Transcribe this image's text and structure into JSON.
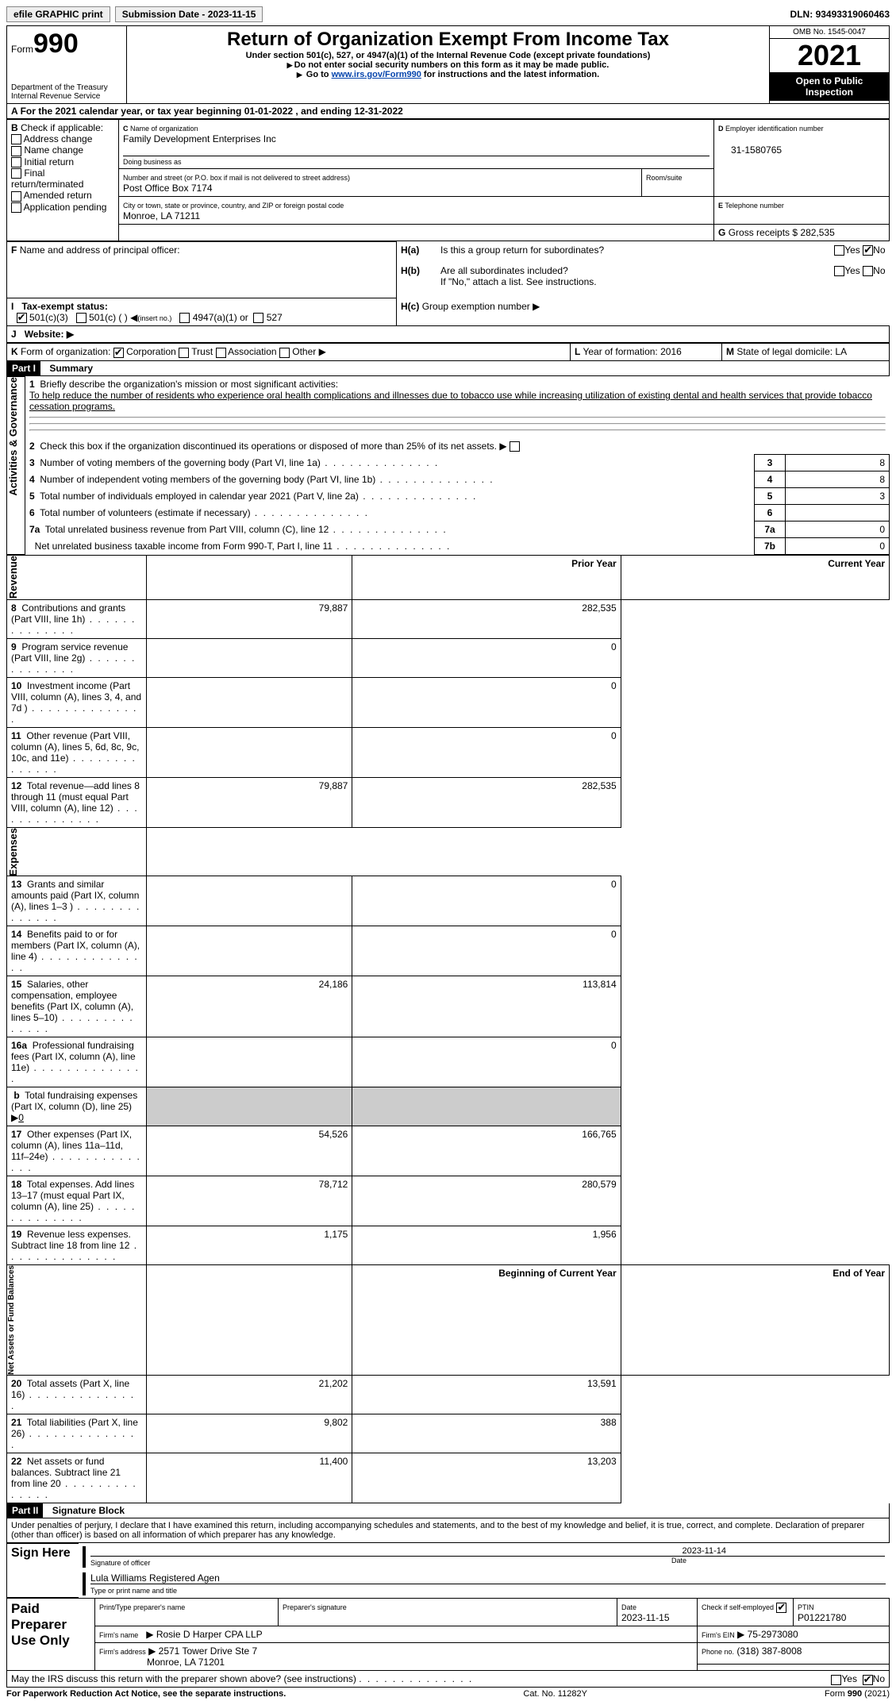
{
  "topbar": {
    "efile": "efile GRAPHIC print",
    "submission_label": "Submission Date - ",
    "submission_date": "2023-11-15",
    "dln_label": "DLN:",
    "dln": "93493319060463"
  },
  "header": {
    "form_word": "Form",
    "form_num": "990",
    "dept": "Department of the Treasury",
    "irs": "Internal Revenue Service",
    "title": "Return of Organization Exempt From Income Tax",
    "sub1": "Under section 501(c), 527, or 4947(a)(1) of the Internal Revenue Code (except private foundations)",
    "sub2": "Do not enter social security numbers on this form as it may be made public.",
    "sub3_a": "Go to ",
    "sub3_link": "www.irs.gov/Form990",
    "sub3_b": " for instructions and the latest information.",
    "omb": "OMB No. 1545-0047",
    "year": "2021",
    "open_pub": "Open to Public Inspection"
  },
  "lineA": {
    "text_a": "For the 2021 calendar year, or tax year beginning ",
    "begin": "01-01-2022",
    "text_b": " , and ending ",
    "end": "12-31-2022"
  },
  "boxB": {
    "label": "Check if applicable:",
    "opts": [
      "Address change",
      "Name change",
      "Initial return",
      "Final return/terminated",
      "Amended return",
      "Application pending"
    ]
  },
  "boxC": {
    "label": "Name of organization",
    "name": "Family Development Enterprises Inc",
    "dba_label": "Doing business as",
    "addr_label": "Number and street (or P.O. box if mail is not delivered to street address)",
    "addr": "Post Office Box 7174",
    "room_label": "Room/suite",
    "city_label": "City or town, state or province, country, and ZIP or foreign postal code",
    "city": "Monroe, LA   71211"
  },
  "boxD": {
    "label": "Employer identification number",
    "val": "31-1580765"
  },
  "boxE": {
    "label": "Telephone number"
  },
  "boxG": {
    "label": "Gross receipts $",
    "val": "282,535"
  },
  "boxF": {
    "label": "Name and address of principal officer:"
  },
  "boxH": {
    "a": "Is this a group return for subordinates?",
    "b": "Are all subordinates included?",
    "note": "If \"No,\" attach a list. See instructions.",
    "c": "Group exemption number"
  },
  "yesno": {
    "yes": "Yes",
    "no": "No"
  },
  "boxI": {
    "label": "Tax-exempt status:",
    "o1": "501(c)(3)",
    "o2": "501(c) (    )",
    "o2b": "(insert no.)",
    "o3": "4947(a)(1) or",
    "o4": "527"
  },
  "boxJ": {
    "label": "Website:"
  },
  "boxK": {
    "label": "Form of organization:",
    "o1": "Corporation",
    "o2": "Trust",
    "o3": "Association",
    "o4": "Other"
  },
  "boxL": {
    "label": "Year of formation:",
    "val": "2016"
  },
  "boxM": {
    "label": "State of legal domicile:",
    "val": "LA"
  },
  "part1": {
    "num": "Part I",
    "title": "Summary"
  },
  "sidebar": {
    "a": "Activities & Governance",
    "b": "Revenue",
    "c": "Expenses",
    "d": "Net Assets or Fund Balances"
  },
  "summary": {
    "l1_label": "Briefly describe the organization's mission or most significant activities:",
    "l1_text": "To help reduce the number of residents who experience oral health complications and illnesses due to tobacco use while increasing utilization of existing dental and health services that provide tobacco cessation programs.",
    "l2": "Check this box           if the organization discontinued its operations or disposed of more than 25% of its net assets.",
    "rows": [
      {
        "n": "3",
        "t": "Number of voting members of the governing body (Part VI, line 1a)",
        "box": "3",
        "v": "8"
      },
      {
        "n": "4",
        "t": "Number of independent voting members of the governing body (Part VI, line 1b)",
        "box": "4",
        "v": "8"
      },
      {
        "n": "5",
        "t": "Total number of individuals employed in calendar year 2021 (Part V, line 2a)",
        "box": "5",
        "v": "3"
      },
      {
        "n": "6",
        "t": "Total number of volunteers (estimate if necessary)",
        "box": "6",
        "v": ""
      },
      {
        "n": "7a",
        "t": "Total unrelated business revenue from Part VIII, column (C), line 12",
        "box": "7a",
        "v": "0"
      },
      {
        "n": "",
        "t": "Net unrelated business taxable income from Form 990-T, Part I, line 11",
        "box": "7b",
        "v": "0"
      }
    ],
    "col_prior": "Prior Year",
    "col_curr": "Current Year",
    "rev": [
      {
        "n": "8",
        "t": "Contributions and grants (Part VIII, line 1h)",
        "p": "79,887",
        "c": "282,535"
      },
      {
        "n": "9",
        "t": "Program service revenue (Part VIII, line 2g)",
        "p": "",
        "c": "0"
      },
      {
        "n": "10",
        "t": "Investment income (Part VIII, column (A), lines 3, 4, and 7d )",
        "p": "",
        "c": "0"
      },
      {
        "n": "11",
        "t": "Other revenue (Part VIII, column (A), lines 5, 6d, 8c, 9c, 10c, and 11e)",
        "p": "",
        "c": "0"
      },
      {
        "n": "12",
        "t": "Total revenue—add lines 8 through 11 (must equal Part VIII, column (A), line 12)",
        "p": "79,887",
        "c": "282,535"
      }
    ],
    "exp": [
      {
        "n": "13",
        "t": "Grants and similar amounts paid (Part IX, column (A), lines 1–3 )",
        "p": "",
        "c": "0"
      },
      {
        "n": "14",
        "t": "Benefits paid to or for members (Part IX, column (A), line 4)",
        "p": "",
        "c": "0"
      },
      {
        "n": "15",
        "t": "Salaries, other compensation, employee benefits (Part IX, column (A), lines 5–10)",
        "p": "24,186",
        "c": "113,814"
      },
      {
        "n": "16a",
        "t": "Professional fundraising fees (Part IX, column (A), line 11e)",
        "p": "",
        "c": "0"
      },
      {
        "n": "b",
        "t": "Total fundraising expenses (Part IX, column (D), line 25)",
        "extra": "0",
        "shaded": true
      },
      {
        "n": "17",
        "t": "Other expenses (Part IX, column (A), lines 11a–11d, 11f–24e)",
        "p": "54,526",
        "c": "166,765"
      },
      {
        "n": "18",
        "t": "Total expenses. Add lines 13–17 (must equal Part IX, column (A), line 25)",
        "p": "78,712",
        "c": "280,579"
      },
      {
        "n": "19",
        "t": "Revenue less expenses. Subtract line 18 from line 12",
        "p": "1,175",
        "c": "1,956"
      }
    ],
    "col_beg": "Beginning of Current Year",
    "col_end": "End of Year",
    "net": [
      {
        "n": "20",
        "t": "Total assets (Part X, line 16)",
        "p": "21,202",
        "c": "13,591"
      },
      {
        "n": "21",
        "t": "Total liabilities (Part X, line 26)",
        "p": "9,802",
        "c": "388"
      },
      {
        "n": "22",
        "t": "Net assets or fund balances. Subtract line 21 from line 20",
        "p": "11,400",
        "c": "13,203"
      }
    ]
  },
  "part2": {
    "num": "Part II",
    "title": "Signature Block"
  },
  "sig": {
    "decl": "Under penalties of perjury, I declare that I have examined this return, including accompanying schedules and statements, and to the best of my knowledge and belief, it is true, correct, and complete. Declaration of preparer (other than officer) is based on all information of which preparer has any knowledge.",
    "sign_here": "Sign Here",
    "sig_officer": "Signature of officer",
    "date": "Date",
    "sig_date": "2023-11-14",
    "name_title": "Lula Williams  Registered Agen",
    "name_label": "Type or print name and title"
  },
  "preparer": {
    "label": "Paid Preparer Use Only",
    "print_name": "Print/Type preparer's name",
    "prep_sig": "Preparer's signature",
    "date_label": "Date",
    "date": "2023-11-15",
    "check_label": "Check           if self-employed",
    "ptin_label": "PTIN",
    "ptin": "P01221780",
    "firm_name_label": "Firm's name",
    "firm_name": "Rosie D Harper CPA LLP",
    "firm_ein_label": "Firm's EIN",
    "firm_ein": "75-2973080",
    "firm_addr_label": "Firm's address",
    "firm_addr1": "2571 Tower Drive Ste 7",
    "firm_addr2": "Monroe, LA   71201",
    "phone_label": "Phone no.",
    "phone": "(318) 387-8008"
  },
  "discuss": "May the IRS discuss this return with the preparer shown above? (see instructions)",
  "footer": {
    "pra": "For Paperwork Reduction Act Notice, see the separate instructions.",
    "cat": "Cat. No. 11282Y",
    "form": "Form 990 (2021)"
  }
}
